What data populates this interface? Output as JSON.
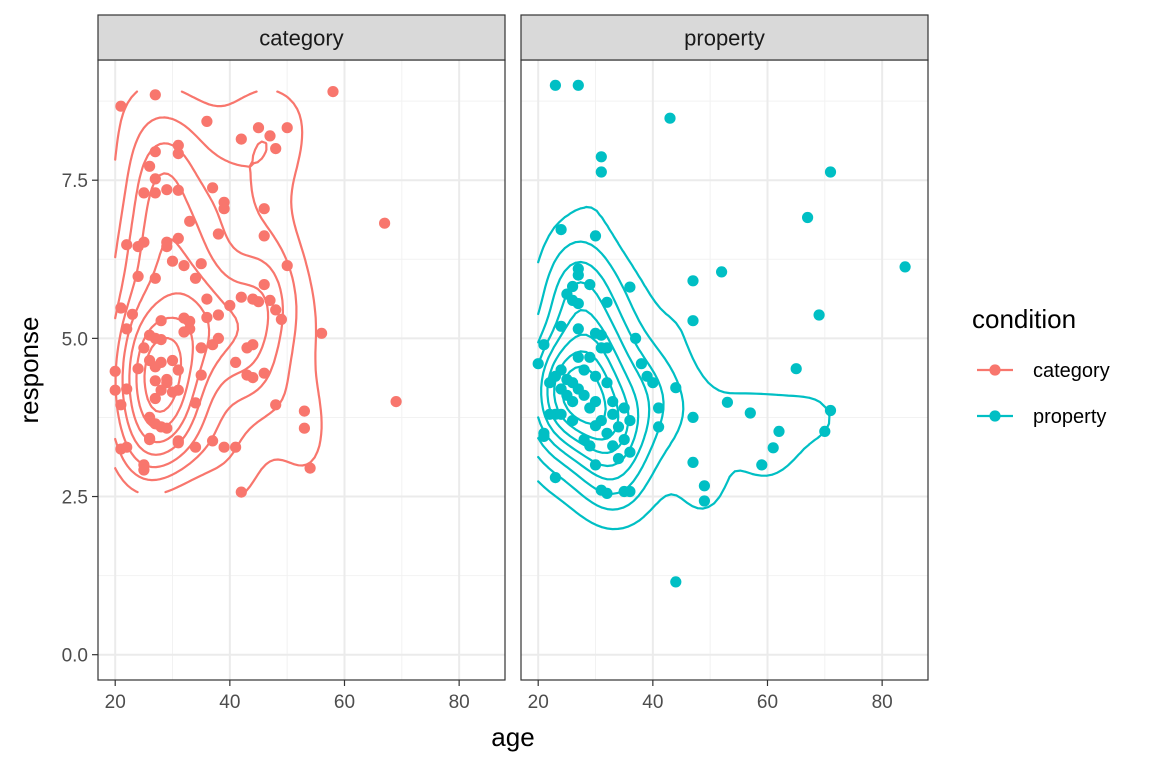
{
  "chart_data": {
    "type": "scatter",
    "subtype": "faceted scatter with 2D density contours",
    "x_label": "age",
    "y_label": "response",
    "x_range": [
      17,
      88
    ],
    "y_range": [
      -0.4,
      9.4
    ],
    "x_ticks": [
      20,
      40,
      60,
      80
    ],
    "y_ticks": [
      0.0,
      2.5,
      5.0,
      7.5
    ],
    "y_tick_labels": [
      "0.0",
      "2.5",
      "5.0",
      "7.5"
    ],
    "grid": true,
    "legend": {
      "title": "condition",
      "position": "right",
      "entries": [
        {
          "label": "category",
          "color": "#F8766D"
        },
        {
          "label": "property",
          "color": "#00BFC4"
        }
      ]
    },
    "facets": [
      {
        "label": "category",
        "color": "#F8766D",
        "points": [
          [
            21,
            8.67
          ],
          [
            27,
            8.85
          ],
          [
            58,
            8.9
          ],
          [
            36,
            8.43
          ],
          [
            31,
            8.05
          ],
          [
            31,
            7.92
          ],
          [
            42,
            8.15
          ],
          [
            45,
            8.33
          ],
          [
            47,
            8.2
          ],
          [
            48,
            8.0
          ],
          [
            50,
            8.33
          ],
          [
            26,
            7.72
          ],
          [
            27,
            7.95
          ],
          [
            27,
            7.52
          ],
          [
            29,
            7.35
          ],
          [
            25,
            7.3
          ],
          [
            27,
            7.3
          ],
          [
            31,
            7.34
          ],
          [
            37,
            7.38
          ],
          [
            39,
            7.15
          ],
          [
            39,
            7.05
          ],
          [
            46,
            7.05
          ],
          [
            33,
            6.85
          ],
          [
            38,
            6.65
          ],
          [
            46,
            6.62
          ],
          [
            67,
            6.82
          ],
          [
            22,
            6.48
          ],
          [
            24,
            6.45
          ],
          [
            25,
            6.52
          ],
          [
            29,
            6.52
          ],
          [
            29,
            6.45
          ],
          [
            31,
            6.58
          ],
          [
            30,
            6.22
          ],
          [
            32,
            6.15
          ],
          [
            35,
            6.18
          ],
          [
            24,
            5.98
          ],
          [
            27,
            5.95
          ],
          [
            34,
            5.95
          ],
          [
            21,
            5.48
          ],
          [
            23,
            5.38
          ],
          [
            36,
            5.62
          ],
          [
            40,
            5.52
          ],
          [
            42,
            5.65
          ],
          [
            44,
            5.62
          ],
          [
            45,
            5.58
          ],
          [
            46,
            5.85
          ],
          [
            47,
            5.6
          ],
          [
            48,
            5.45
          ],
          [
            49,
            5.3
          ],
          [
            50,
            6.15
          ],
          [
            22,
            5.15
          ],
          [
            28,
            5.28
          ],
          [
            32,
            5.32
          ],
          [
            32,
            5.1
          ],
          [
            33,
            5.15
          ],
          [
            33,
            5.27
          ],
          [
            36,
            5.33
          ],
          [
            38,
            5.37
          ],
          [
            38,
            5.0
          ],
          [
            26,
            5.05
          ],
          [
            28,
            4.98
          ],
          [
            27,
            5.0
          ],
          [
            25,
            4.85
          ],
          [
            24,
            4.52
          ],
          [
            26,
            4.65
          ],
          [
            27,
            4.55
          ],
          [
            28,
            4.62
          ],
          [
            29,
            4.35
          ],
          [
            30,
            4.65
          ],
          [
            31,
            4.5
          ],
          [
            35,
            4.85
          ],
          [
            35,
            4.42
          ],
          [
            37,
            4.9
          ],
          [
            43,
            4.85
          ],
          [
            44,
            4.9
          ],
          [
            41,
            4.62
          ],
          [
            43,
            4.42
          ],
          [
            44,
            4.38
          ],
          [
            46,
            4.45
          ],
          [
            56,
            5.08
          ],
          [
            20,
            4.48
          ],
          [
            20,
            4.18
          ],
          [
            22,
            4.2
          ],
          [
            21,
            3.95
          ],
          [
            27,
            4.33
          ],
          [
            27,
            4.05
          ],
          [
            28,
            4.18
          ],
          [
            29,
            4.3
          ],
          [
            30,
            4.15
          ],
          [
            31,
            4.18
          ],
          [
            34,
            3.98
          ],
          [
            26,
            3.75
          ],
          [
            27,
            3.65
          ],
          [
            28,
            3.6
          ],
          [
            29,
            3.58
          ],
          [
            31,
            3.38
          ],
          [
            31,
            3.35
          ],
          [
            34,
            3.28
          ],
          [
            37,
            3.38
          ],
          [
            39,
            3.28
          ],
          [
            41,
            3.28
          ],
          [
            48,
            3.95
          ],
          [
            53,
            3.85
          ],
          [
            53,
            3.58
          ],
          [
            69,
            4.0
          ],
          [
            21,
            3.25
          ],
          [
            22,
            3.28
          ],
          [
            26,
            3.42
          ],
          [
            25,
            3.0
          ],
          [
            25,
            2.92
          ],
          [
            42,
            2.57
          ],
          [
            54,
            2.95
          ],
          [
            26,
            3.4
          ]
        ]
      },
      {
        "label": "property",
        "color": "#00BFC4",
        "points": [
          [
            23,
            9.0
          ],
          [
            27,
            9.0
          ],
          [
            43,
            8.48
          ],
          [
            31,
            7.87
          ],
          [
            31,
            7.63
          ],
          [
            71,
            7.63
          ],
          [
            67,
            6.91
          ],
          [
            24,
            6.72
          ],
          [
            30,
            6.62
          ],
          [
            84,
            6.13
          ],
          [
            27,
            6.1
          ],
          [
            27,
            6.0
          ],
          [
            52,
            6.05
          ],
          [
            26,
            5.82
          ],
          [
            29,
            5.85
          ],
          [
            36,
            5.81
          ],
          [
            47,
            5.91
          ],
          [
            25,
            5.7
          ],
          [
            26,
            5.6
          ],
          [
            27,
            5.55
          ],
          [
            32,
            5.57
          ],
          [
            69,
            5.37
          ],
          [
            24,
            5.19
          ],
          [
            27,
            5.15
          ],
          [
            30,
            5.08
          ],
          [
            31,
            5.05
          ],
          [
            37,
            5.0
          ],
          [
            47,
            5.28
          ],
          [
            21,
            4.9
          ],
          [
            20,
            4.6
          ],
          [
            22,
            4.3
          ],
          [
            23,
            4.4
          ],
          [
            24,
            4.5
          ],
          [
            24,
            4.2
          ],
          [
            25,
            4.35
          ],
          [
            25,
            4.1
          ],
          [
            26,
            4.3
          ],
          [
            26,
            4.0
          ],
          [
            27,
            4.7
          ],
          [
            27,
            4.2
          ],
          [
            28,
            4.5
          ],
          [
            28,
            4.1
          ],
          [
            29,
            4.7
          ],
          [
            29,
            3.9
          ],
          [
            30,
            4.4
          ],
          [
            30,
            4.0
          ],
          [
            31,
            4.85
          ],
          [
            31,
            3.7
          ],
          [
            32,
            4.85
          ],
          [
            32,
            4.3
          ],
          [
            32,
            3.5
          ],
          [
            33,
            4.0
          ],
          [
            33,
            3.8
          ],
          [
            33,
            3.3
          ],
          [
            34,
            3.6
          ],
          [
            34,
            3.1
          ],
          [
            35,
            3.9
          ],
          [
            35,
            3.4
          ],
          [
            36,
            3.7
          ],
          [
            36,
            3.2
          ],
          [
            38,
            4.6
          ],
          [
            39,
            4.4
          ],
          [
            40,
            4.3
          ],
          [
            21,
            3.5
          ],
          [
            22,
            3.8
          ],
          [
            23,
            3.8
          ],
          [
            24,
            3.8
          ],
          [
            26,
            3.7
          ],
          [
            28,
            3.4
          ],
          [
            29,
            3.3
          ],
          [
            30,
            3.0
          ],
          [
            31,
            2.6
          ],
          [
            32,
            2.55
          ],
          [
            35,
            2.58
          ],
          [
            36,
            2.58
          ],
          [
            21,
            3.45
          ],
          [
            23,
            2.8
          ],
          [
            41,
            3.9
          ],
          [
            41,
            3.6
          ],
          [
            44,
            4.22
          ],
          [
            47,
            3.75
          ],
          [
            47,
            3.04
          ],
          [
            49,
            2.67
          ],
          [
            49,
            2.43
          ],
          [
            53,
            3.99
          ],
          [
            57,
            3.82
          ],
          [
            59,
            3.0
          ],
          [
            61,
            3.27
          ],
          [
            62,
            3.53
          ],
          [
            65,
            4.52
          ],
          [
            70,
            3.53
          ],
          [
            71,
            3.86
          ],
          [
            44,
            1.15
          ],
          [
            30,
            3.62
          ]
        ]
      }
    ]
  }
}
